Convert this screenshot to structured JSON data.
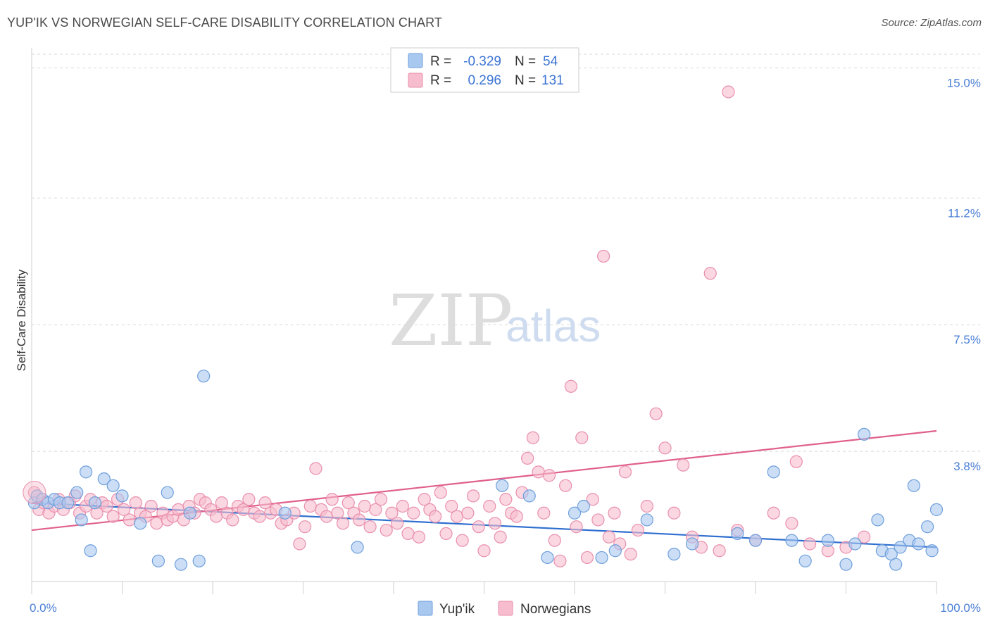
{
  "title": "YUP'IK VS NORWEGIAN SELF-CARE DISABILITY CORRELATION CHART",
  "source": "Source: ZipAtlas.com",
  "watermark": {
    "zip": "ZIP",
    "atlas": "atlas"
  },
  "colors": {
    "yupik_fill": "#a9c8f0",
    "yupik_stroke": "#6f9fdc",
    "yupik_line": "#2f6fd0",
    "norw_fill": "#f7bccd",
    "norw_stroke": "#e98fae",
    "norw_line": "#e0608b",
    "tick": "#4a7fd6",
    "grid": "#d8d8d8"
  },
  "legend": {
    "rows": [
      {
        "r_label": "R =",
        "r_value": "-0.329",
        "n_label": "N =",
        "n_value": "54"
      },
      {
        "r_label": "R =",
        "r_value": "0.296",
        "n_label": "N =",
        "n_value": "131"
      }
    ]
  },
  "chart_data": {
    "type": "scatter",
    "title": "YUP'IK VS NORWEGIAN SELF-CARE DISABILITY CORRELATION CHART",
    "xlabel": "",
    "ylabel": "Self-Care Disability",
    "xlim": [
      0,
      100
    ],
    "ylim": [
      0,
      15.4
    ],
    "x_tick_labels": [
      "0.0%",
      "100.0%"
    ],
    "y_ticks": [
      3.8,
      7.5,
      11.2,
      15.0
    ],
    "y_tick_labels": [
      "3.8%",
      "7.5%",
      "11.2%",
      "15.0%"
    ],
    "grid": "horizontal dashed",
    "legend_placement": "top-center",
    "series": [
      {
        "name": "Yup'ik",
        "trend": {
          "x": [
            0,
            100
          ],
          "y": [
            2.3,
            1.0
          ]
        },
        "points": [
          [
            0.3,
            2.3
          ],
          [
            0.6,
            2.5
          ],
          [
            1.2,
            2.4
          ],
          [
            1.8,
            2.3
          ],
          [
            2.5,
            2.4
          ],
          [
            3.1,
            2.3
          ],
          [
            4.0,
            2.3
          ],
          [
            5.0,
            2.6
          ],
          [
            5.5,
            1.8
          ],
          [
            6.0,
            3.2
          ],
          [
            6.5,
            0.9
          ],
          [
            7.0,
            2.3
          ],
          [
            8.0,
            3.0
          ],
          [
            9.0,
            2.8
          ],
          [
            10.0,
            2.5
          ],
          [
            12.0,
            1.7
          ],
          [
            14.0,
            0.6
          ],
          [
            15.0,
            2.6
          ],
          [
            16.5,
            0.5
          ],
          [
            17.5,
            2.0
          ],
          [
            18.5,
            0.6
          ],
          [
            19.0,
            6.0
          ],
          [
            28.0,
            2.0
          ],
          [
            36.0,
            1.0
          ],
          [
            52.0,
            2.8
          ],
          [
            55.0,
            2.5
          ],
          [
            57.0,
            0.7
          ],
          [
            60.0,
            2.0
          ],
          [
            61.0,
            2.2
          ],
          [
            63.0,
            0.7
          ],
          [
            64.5,
            0.9
          ],
          [
            68.0,
            1.8
          ],
          [
            71.0,
            0.8
          ],
          [
            73.0,
            1.1
          ],
          [
            78.0,
            1.4
          ],
          [
            80.0,
            1.2
          ],
          [
            82.0,
            3.2
          ],
          [
            84.0,
            1.2
          ],
          [
            85.5,
            0.6
          ],
          [
            88.0,
            1.2
          ],
          [
            90.0,
            0.5
          ],
          [
            91.0,
            1.1
          ],
          [
            94.0,
            0.9
          ],
          [
            95.0,
            0.8
          ],
          [
            96.0,
            1.0
          ],
          [
            97.0,
            1.2
          ],
          [
            98.0,
            1.1
          ],
          [
            99.5,
            0.9
          ],
          [
            92.0,
            4.3
          ],
          [
            93.5,
            1.8
          ],
          [
            95.5,
            0.5
          ],
          [
            97.5,
            2.8
          ],
          [
            99.0,
            1.6
          ],
          [
            100.0,
            2.1
          ]
        ]
      },
      {
        "name": "Norwegians",
        "trend": {
          "x": [
            0,
            100
          ],
          "y": [
            1.5,
            4.4
          ]
        },
        "points": [
          [
            0.3,
            2.6
          ],
          [
            0.8,
            2.1
          ],
          [
            1.3,
            2.3
          ],
          [
            1.9,
            2.0
          ],
          [
            2.5,
            2.2
          ],
          [
            3.0,
            2.4
          ],
          [
            3.5,
            2.1
          ],
          [
            4.2,
            2.3
          ],
          [
            4.8,
            2.5
          ],
          [
            5.3,
            2.0
          ],
          [
            6.0,
            2.2
          ],
          [
            6.5,
            2.4
          ],
          [
            7.2,
            2.0
          ],
          [
            7.8,
            2.3
          ],
          [
            8.3,
            2.2
          ],
          [
            9.0,
            1.9
          ],
          [
            9.5,
            2.4
          ],
          [
            10.2,
            2.1
          ],
          [
            10.8,
            1.8
          ],
          [
            11.5,
            2.3
          ],
          [
            12.0,
            2.0
          ],
          [
            12.6,
            1.9
          ],
          [
            13.2,
            2.2
          ],
          [
            13.8,
            1.7
          ],
          [
            14.5,
            2.0
          ],
          [
            15.0,
            1.8
          ],
          [
            15.6,
            1.9
          ],
          [
            16.2,
            2.1
          ],
          [
            16.8,
            1.8
          ],
          [
            17.4,
            2.2
          ],
          [
            18.0,
            2.0
          ],
          [
            18.6,
            2.4
          ],
          [
            19.2,
            2.3
          ],
          [
            19.8,
            2.1
          ],
          [
            20.4,
            1.9
          ],
          [
            21.0,
            2.3
          ],
          [
            21.6,
            2.0
          ],
          [
            22.2,
            1.8
          ],
          [
            22.8,
            2.2
          ],
          [
            23.4,
            2.1
          ],
          [
            24.0,
            2.4
          ],
          [
            24.6,
            2.0
          ],
          [
            25.2,
            1.9
          ],
          [
            25.8,
            2.3
          ],
          [
            26.4,
            2.0
          ],
          [
            27.0,
            2.1
          ],
          [
            27.6,
            1.7
          ],
          [
            28.2,
            1.8
          ],
          [
            29.0,
            2.0
          ],
          [
            29.6,
            1.1
          ],
          [
            30.2,
            1.6
          ],
          [
            30.8,
            2.2
          ],
          [
            31.4,
            3.3
          ],
          [
            32.0,
            2.1
          ],
          [
            32.6,
            1.9
          ],
          [
            33.2,
            2.4
          ],
          [
            33.8,
            2.0
          ],
          [
            34.4,
            1.7
          ],
          [
            35.0,
            2.3
          ],
          [
            35.6,
            2.0
          ],
          [
            36.2,
            1.8
          ],
          [
            36.8,
            2.2
          ],
          [
            37.4,
            1.6
          ],
          [
            38.0,
            2.1
          ],
          [
            38.6,
            2.4
          ],
          [
            39.2,
            1.5
          ],
          [
            39.8,
            2.0
          ],
          [
            40.4,
            1.7
          ],
          [
            41.0,
            2.2
          ],
          [
            41.6,
            1.4
          ],
          [
            42.2,
            2.0
          ],
          [
            42.8,
            1.3
          ],
          [
            43.4,
            2.4
          ],
          [
            44.0,
            2.1
          ],
          [
            44.6,
            1.9
          ],
          [
            45.2,
            2.6
          ],
          [
            45.8,
            1.4
          ],
          [
            46.4,
            2.2
          ],
          [
            47.0,
            1.9
          ],
          [
            47.6,
            1.2
          ],
          [
            48.2,
            2.0
          ],
          [
            48.8,
            2.5
          ],
          [
            49.4,
            1.6
          ],
          [
            50.0,
            0.9
          ],
          [
            50.6,
            2.2
          ],
          [
            51.2,
            1.7
          ],
          [
            51.8,
            1.3
          ],
          [
            52.4,
            2.4
          ],
          [
            53.0,
            2.0
          ],
          [
            53.6,
            1.9
          ],
          [
            54.2,
            2.6
          ],
          [
            54.8,
            3.6
          ],
          [
            55.4,
            4.2
          ],
          [
            56.0,
            3.2
          ],
          [
            56.6,
            2.0
          ],
          [
            57.2,
            3.1
          ],
          [
            57.8,
            1.2
          ],
          [
            58.4,
            0.6
          ],
          [
            59.0,
            2.8
          ],
          [
            59.6,
            5.7
          ],
          [
            60.2,
            1.6
          ],
          [
            60.8,
            4.2
          ],
          [
            61.4,
            0.7
          ],
          [
            62.0,
            2.4
          ],
          [
            62.6,
            1.8
          ],
          [
            63.2,
            9.5
          ],
          [
            63.8,
            1.3
          ],
          [
            64.4,
            2.0
          ],
          [
            65.0,
            1.1
          ],
          [
            65.6,
            3.2
          ],
          [
            66.2,
            0.8
          ],
          [
            67.0,
            1.5
          ],
          [
            68.0,
            2.2
          ],
          [
            69.0,
            4.9
          ],
          [
            70.0,
            3.9
          ],
          [
            71.0,
            2.0
          ],
          [
            72.0,
            3.4
          ],
          [
            73.0,
            1.3
          ],
          [
            74.0,
            1.0
          ],
          [
            75.0,
            9.0
          ],
          [
            76.0,
            0.9
          ],
          [
            77.0,
            14.3
          ],
          [
            78.0,
            1.5
          ],
          [
            80.0,
            1.2
          ],
          [
            82.0,
            2.0
          ],
          [
            84.0,
            1.7
          ],
          [
            86.0,
            1.1
          ],
          [
            88.0,
            0.9
          ],
          [
            90.0,
            1.0
          ],
          [
            92.0,
            1.3
          ],
          [
            84.5,
            3.5
          ]
        ]
      }
    ],
    "legend_entries": [
      "Yup'ik",
      "Norwegians"
    ]
  }
}
